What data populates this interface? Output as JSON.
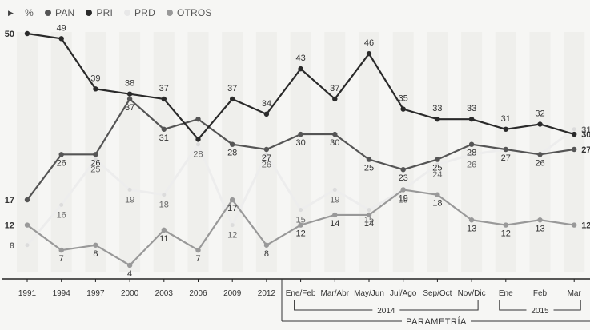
{
  "chart_data": {
    "type": "line",
    "unit_label": "%",
    "categories": [
      "1991",
      "1994",
      "1997",
      "2000",
      "2003",
      "2006",
      "2009",
      "2012",
      "Ene/Feb",
      "Mar/Abr",
      "May/Jun",
      "Jul/Ago",
      "Sep/Oct",
      "Nov/Dic",
      "Ene",
      "Feb",
      "Mar"
    ],
    "series": [
      {
        "name": "PAN",
        "color": "#555555",
        "values": [
          17,
          26,
          26,
          37,
          31,
          33,
          28,
          27,
          30,
          30,
          25,
          23,
          25,
          28,
          27,
          26,
          27
        ],
        "labels": [
          "17",
          "26",
          "26",
          "37",
          "31",
          "",
          "28",
          "27",
          "30",
          "30",
          "25",
          "23",
          "25",
          "28",
          "27",
          "26",
          "27"
        ]
      },
      {
        "name": "PRI",
        "color": "#2a2a2a",
        "values": [
          50,
          49,
          39,
          38,
          37,
          29,
          37,
          34,
          43,
          37,
          46,
          35,
          33,
          33,
          31,
          32,
          30
        ],
        "labels": [
          "50",
          "49",
          "39",
          "38",
          "37",
          "",
          "37",
          "34",
          "43",
          "37",
          "46",
          "35",
          "33",
          "33",
          "31",
          "32",
          "30"
        ]
      },
      {
        "name": "PRD",
        "color": "#ededed",
        "values": [
          8,
          16,
          25,
          19,
          18,
          28,
          12,
          26,
          15,
          19,
          15,
          19,
          24,
          26,
          27,
          26,
          31
        ],
        "labels": [
          "8",
          "16",
          "25",
          "19",
          "18",
          "28",
          "12",
          "26",
          "15",
          "19",
          "15",
          "19",
          "24",
          "26",
          "",
          "",
          "31"
        ]
      },
      {
        "name": "OTROS",
        "color": "#999999",
        "values": [
          12,
          7,
          8,
          4,
          11,
          7,
          17,
          8,
          12,
          14,
          14,
          19,
          18,
          13,
          12,
          13,
          12
        ],
        "labels": [
          "12",
          "7",
          "8",
          "4",
          "11",
          "7",
          "17",
          "8",
          "12",
          "14",
          "14",
          "19",
          "18",
          "13",
          "12",
          "13",
          "12"
        ]
      }
    ],
    "group_labels": [
      "2014",
      "2015"
    ],
    "source": "PARAMETRÍA",
    "ylim": [
      0,
      55
    ],
    "grid": false,
    "legend": "top-left"
  }
}
